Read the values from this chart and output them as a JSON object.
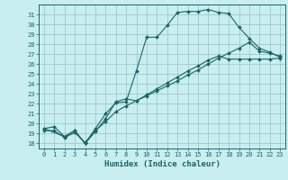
{
  "title": "",
  "xlabel": "Humidex (Indice chaleur)",
  "bg_color": "#c8eef0",
  "grid_color": "#9bbfbf",
  "line_color": "#1a6666",
  "xlim": [
    -0.5,
    23.5
  ],
  "ylim": [
    17.5,
    32.0
  ],
  "xticks": [
    0,
    1,
    2,
    3,
    4,
    5,
    6,
    7,
    8,
    9,
    10,
    11,
    12,
    13,
    14,
    15,
    16,
    17,
    18,
    19,
    20,
    21,
    22,
    23
  ],
  "yticks": [
    18,
    19,
    20,
    21,
    22,
    23,
    24,
    25,
    26,
    27,
    28,
    29,
    30,
    31
  ],
  "line1_x": [
    0,
    1,
    2,
    3,
    4,
    5,
    6,
    7,
    8,
    9,
    10,
    11,
    12,
    13,
    14,
    15,
    16,
    17,
    18,
    19,
    20,
    21,
    22,
    23
  ],
  "line1_y": [
    19.5,
    19.7,
    18.7,
    19.3,
    18.0,
    19.5,
    21.0,
    22.1,
    22.2,
    25.3,
    28.7,
    28.7,
    29.9,
    31.2,
    31.3,
    31.3,
    31.5,
    31.2,
    31.1,
    29.7,
    28.6,
    27.6,
    27.2,
    26.7
  ],
  "line2_x": [
    0,
    1,
    2,
    3,
    4,
    5,
    6,
    7,
    8,
    9,
    10,
    11,
    12,
    13,
    14,
    15,
    16,
    17,
    18,
    19,
    20,
    21,
    22,
    23
  ],
  "line2_y": [
    19.3,
    19.3,
    18.6,
    19.1,
    18.1,
    19.3,
    20.2,
    21.2,
    21.8,
    22.3,
    22.9,
    23.5,
    24.1,
    24.7,
    25.3,
    25.8,
    26.4,
    26.8,
    26.5,
    26.5,
    26.5,
    26.5,
    26.5,
    26.6
  ],
  "line3_x": [
    0,
    2,
    3,
    4,
    5,
    6,
    7,
    8,
    9,
    10,
    11,
    12,
    13,
    14,
    15,
    16,
    17,
    18,
    19,
    20,
    21,
    22,
    23
  ],
  "line3_y": [
    19.5,
    18.7,
    19.3,
    18.0,
    19.2,
    20.5,
    22.2,
    22.5,
    22.3,
    22.8,
    23.3,
    23.8,
    24.3,
    24.9,
    25.4,
    26.0,
    26.6,
    27.1,
    27.6,
    28.2,
    27.3,
    27.1,
    26.8
  ]
}
